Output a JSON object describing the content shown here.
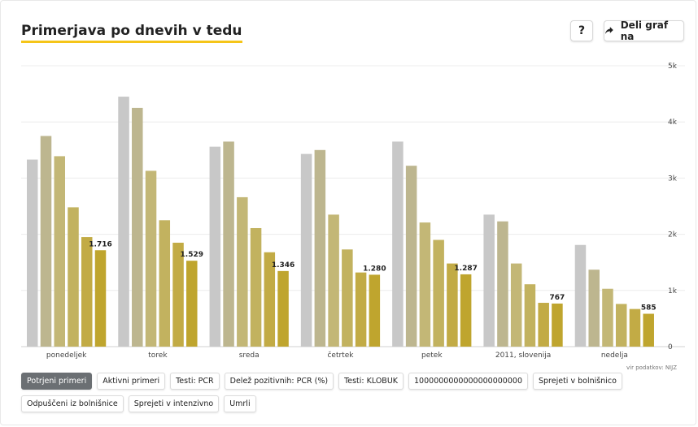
{
  "header": {
    "title": "Primerjava po dnevih v tedu",
    "help_label": "?",
    "share_label": "Deli graf na"
  },
  "source_text": "vir podatkov: NIJZ",
  "colors": {
    "series": [
      "#c8c8c8",
      "#bdb68f",
      "#c3b776",
      "#c2b25f",
      "#c2ab45",
      "#bfa52e"
    ],
    "title_underline": "#f5c518",
    "active_tab": "#6b6f73"
  },
  "tabs": [
    {
      "label": "Potrjeni primeri",
      "active": true
    },
    {
      "label": "Aktivni primeri",
      "active": false
    },
    {
      "label": "Testi: PCR",
      "active": false
    },
    {
      "label": "Delež pozitivnih: PCR (%)",
      "active": false
    },
    {
      "label": "Testi: KLOBUK",
      "active": false
    },
    {
      "label": "1000000000000000000000",
      "active": false
    },
    {
      "label": "Sprejeti v bolnišnico",
      "active": false
    },
    {
      "label": "Odpuščeni iz bolnišnice",
      "active": false
    },
    {
      "label": "Sprejeti v intenzivno",
      "active": false
    },
    {
      "label": "Umrli",
      "active": false
    }
  ],
  "chart_data": {
    "type": "bar",
    "categories": [
      "ponedeljek",
      "torek",
      "sreda",
      "četrtek",
      "petek",
      "2011, slovenija",
      "nedelja"
    ],
    "series": [
      {
        "values": [
          3330,
          4450,
          3560,
          3430,
          3650,
          2350,
          1810
        ]
      },
      {
        "values": [
          3750,
          4250,
          3650,
          3500,
          3220,
          2230,
          1370
        ]
      },
      {
        "values": [
          3390,
          3130,
          2660,
          2350,
          2210,
          1480,
          1030
        ]
      },
      {
        "values": [
          2480,
          2250,
          2110,
          1730,
          1900,
          1110,
          760
        ]
      },
      {
        "values": [
          1950,
          1850,
          1680,
          1320,
          1480,
          780,
          670
        ]
      },
      {
        "values": [
          1716,
          1529,
          1346,
          1280,
          1287,
          767,
          585
        ]
      }
    ],
    "data_labels": [
      "1.716",
      "1.529",
      "1.346",
      "1.280",
      "1.287",
      "767",
      "585"
    ],
    "y_ticks": [
      0,
      1000,
      2000,
      3000,
      4000,
      5000
    ],
    "y_tick_labels": [
      "0",
      "1k",
      "2k",
      "3k",
      "4k",
      "5k"
    ],
    "ylim": [
      0,
      5000
    ],
    "grid": true,
    "y_axis_side": "right"
  }
}
